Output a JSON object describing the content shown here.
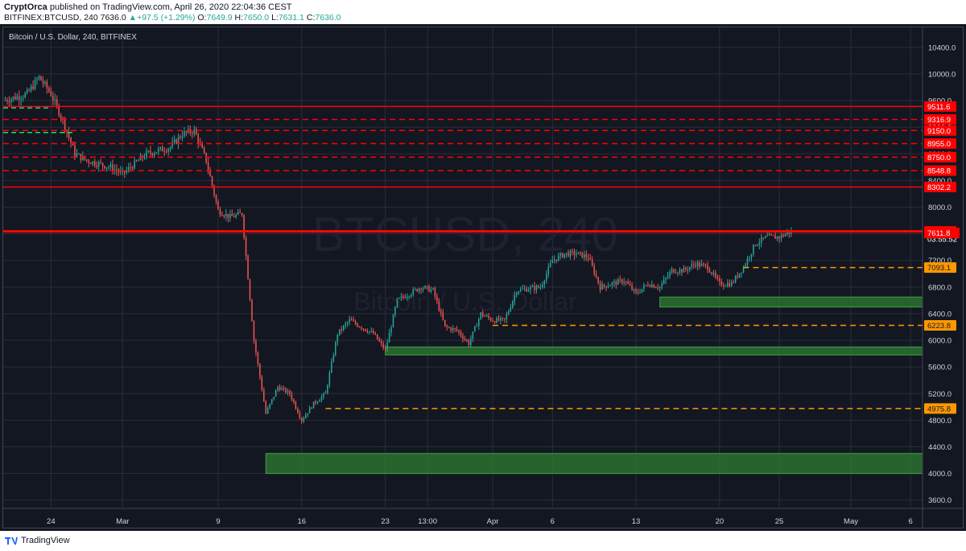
{
  "header": {
    "author": "CryptOrca",
    "published": "published on TradingView.com, April 26, 2020 22:04:36 CEST",
    "symbol": "BITFINEX:BTCUSD, 240",
    "last": "7636.0",
    "change": "+97.5 (+1.29%)",
    "o_label": "O:",
    "o": "7649.9",
    "h_label": "H:",
    "h": "7650.0",
    "l_label": "L:",
    "l": "7631.1",
    "c_label": "C:",
    "c": "7636.0"
  },
  "chart_title": "Bitcoin / U.S. Dollar, 240, BITFINEX",
  "watermark": {
    "line1": "BTCUSD, 240",
    "line2": "Bitcoin / U.S. Dollar"
  },
  "footer": {
    "brand": "TradingView"
  },
  "colors": {
    "bg": "#131722",
    "up": "#26a69a",
    "down": "#ef5350",
    "red_line": "#ff0000",
    "orange": "#ff9800",
    "green_zone": "#2e7d32",
    "grid": "#2a2e39"
  },
  "chart_data": {
    "type": "candlestick",
    "title": "Bitcoin / U.S. Dollar, 240, BITFINEX",
    "ylim": [
      3500,
      10700
    ],
    "xlim": [
      "2020-02-20",
      "2020-05-07"
    ],
    "y_ticks": [
      "3600.0",
      "4000.0",
      "4400.0",
      "4800.0",
      "5200.0",
      "5600.0",
      "6000.0",
      "6400.0",
      "6800.0",
      "7200.0",
      "7600.0",
      "8000.0",
      "8400.0",
      "8800.0",
      "9200.0",
      "9600.0",
      "10000.0",
      "10400.0"
    ],
    "x_ticks": [
      {
        "label": "24",
        "date": "2020-02-24"
      },
      {
        "label": "Mar",
        "date": "2020-03-01"
      },
      {
        "label": "9",
        "date": "2020-03-09"
      },
      {
        "label": "16",
        "date": "2020-03-16"
      },
      {
        "label": "23",
        "date": "2020-03-23"
      },
      {
        "label": "13:00",
        "date": "2020-03-26T13:00"
      },
      {
        "label": "Apr",
        "date": "2020-04-01"
      },
      {
        "label": "6",
        "date": "2020-04-06"
      },
      {
        "label": "13",
        "date": "2020-04-13"
      },
      {
        "label": "20",
        "date": "2020-04-20"
      },
      {
        "label": "25",
        "date": "2020-04-25"
      },
      {
        "label": "May",
        "date": "2020-05-01"
      },
      {
        "label": "6",
        "date": "2020-05-06"
      }
    ],
    "price_path": [
      {
        "date": "2020-02-20",
        "close": 9600
      },
      {
        "date": "2020-02-22",
        "close": 9700
      },
      {
        "date": "2020-02-23",
        "close": 9950
      },
      {
        "date": "2020-02-24",
        "close": 9700
      },
      {
        "date": "2020-02-25",
        "close": 9300
      },
      {
        "date": "2020-02-26",
        "close": 8800
      },
      {
        "date": "2020-02-27",
        "close": 8700
      },
      {
        "date": "2020-02-29",
        "close": 8600
      },
      {
        "date": "2020-03-01",
        "close": 8500
      },
      {
        "date": "2020-03-03",
        "close": 8800
      },
      {
        "date": "2020-03-05",
        "close": 8900
      },
      {
        "date": "2020-03-06",
        "close": 9100
      },
      {
        "date": "2020-03-07",
        "close": 9150
      },
      {
        "date": "2020-03-08",
        "close": 8700
      },
      {
        "date": "2020-03-09",
        "close": 7950
      },
      {
        "date": "2020-03-10",
        "close": 7850
      },
      {
        "date": "2020-03-11",
        "close": 7900
      },
      {
        "date": "2020-03-12",
        "close": 6000
      },
      {
        "date": "2020-03-13",
        "close": 4900
      },
      {
        "date": "2020-03-14",
        "close": 5300
      },
      {
        "date": "2020-03-15",
        "close": 5200
      },
      {
        "date": "2020-03-16",
        "close": 4800
      },
      {
        "date": "2020-03-17",
        "close": 5050
      },
      {
        "date": "2020-03-18",
        "close": 5200
      },
      {
        "date": "2020-03-19",
        "close": 6100
      },
      {
        "date": "2020-03-20",
        "close": 6300
      },
      {
        "date": "2020-03-22",
        "close": 6100
      },
      {
        "date": "2020-03-23",
        "close": 5850
      },
      {
        "date": "2020-03-24",
        "close": 6600
      },
      {
        "date": "2020-03-25",
        "close": 6700
      },
      {
        "date": "2020-03-26",
        "close": 6800
      },
      {
        "date": "2020-03-27",
        "close": 6750
      },
      {
        "date": "2020-03-28",
        "close": 6200
      },
      {
        "date": "2020-03-29",
        "close": 6150
      },
      {
        "date": "2020-03-30",
        "close": 5950
      },
      {
        "date": "2020-03-31",
        "close": 6400
      },
      {
        "date": "2020-04-01",
        "close": 6300
      },
      {
        "date": "2020-04-02",
        "close": 6300
      },
      {
        "date": "2020-04-03",
        "close": 6750
      },
      {
        "date": "2020-04-05",
        "close": 6800
      },
      {
        "date": "2020-04-06",
        "close": 7200
      },
      {
        "date": "2020-04-07",
        "close": 7300
      },
      {
        "date": "2020-04-08",
        "close": 7300
      },
      {
        "date": "2020-04-09",
        "close": 7250
      },
      {
        "date": "2020-04-10",
        "close": 6800
      },
      {
        "date": "2020-04-11",
        "close": 6850
      },
      {
        "date": "2020-04-12",
        "close": 6900
      },
      {
        "date": "2020-04-13",
        "close": 6700
      },
      {
        "date": "2020-04-14",
        "close": 6850
      },
      {
        "date": "2020-04-15",
        "close": 6800
      },
      {
        "date": "2020-04-16",
        "close": 7050
      },
      {
        "date": "2020-04-17",
        "close": 7050
      },
      {
        "date": "2020-04-18",
        "close": 7150
      },
      {
        "date": "2020-04-19",
        "close": 7100
      },
      {
        "date": "2020-04-20",
        "close": 6850
      },
      {
        "date": "2020-04-21",
        "close": 6850
      },
      {
        "date": "2020-04-22",
        "close": 7100
      },
      {
        "date": "2020-04-23",
        "close": 7450
      },
      {
        "date": "2020-04-24",
        "close": 7550
      },
      {
        "date": "2020-04-25",
        "close": 7550
      },
      {
        "date": "2020-04-26",
        "close": 7636
      }
    ],
    "horizontal_lines": [
      {
        "price": 9511.6,
        "label": "9511.6",
        "style": "solid",
        "color": "#ff0000"
      },
      {
        "price": 9316.9,
        "label": "9316.9",
        "style": "dashed",
        "color": "#ff0000"
      },
      {
        "price": 9150.0,
        "label": "9150.0",
        "style": "dashed",
        "color": "#ff0000"
      },
      {
        "price": 8955.0,
        "label": "8955.0",
        "style": "dashed",
        "color": "#ff0000"
      },
      {
        "price": 8750.0,
        "label": "8750.0",
        "style": "dashed",
        "color": "#ff0000"
      },
      {
        "price": 8548.8,
        "label": "8548.8",
        "style": "dashed",
        "color": "#ff0000"
      },
      {
        "price": 8302.2,
        "label": "8302.2",
        "style": "solid",
        "color": "#ff0000"
      },
      {
        "price": 7636.0,
        "label": "7636.0",
        "style": "solid",
        "color": "#ff0000"
      },
      {
        "price": 7093.1,
        "label": "7093.1",
        "style": "dashed",
        "color": "#ff9800",
        "from": "2020-04-22"
      },
      {
        "price": 6223.8,
        "label": "6223.8",
        "style": "dashed",
        "color": "#ff9800",
        "from": "2020-04-01"
      },
      {
        "price": 4975.8,
        "label": "4975.8",
        "style": "dashed",
        "color": "#ff9800",
        "from": "2020-03-18"
      }
    ],
    "green_dashed_levels": [
      {
        "price": 9490,
        "to": "2020-02-24"
      },
      {
        "price": 9120,
        "to": "2020-02-26"
      }
    ],
    "extra_price_labels": [
      {
        "price": 7520,
        "label": "03:55:52",
        "kind": "countdown"
      },
      {
        "price": 7611.8,
        "label": "7611.8",
        "kind": "red"
      }
    ],
    "zones": [
      {
        "from": "2020-04-15",
        "low": 6500,
        "high": 6650
      },
      {
        "from": "2020-03-23",
        "low": 5780,
        "high": 5900
      },
      {
        "from": "2020-03-13",
        "low": 4000,
        "high": 4300
      }
    ]
  }
}
